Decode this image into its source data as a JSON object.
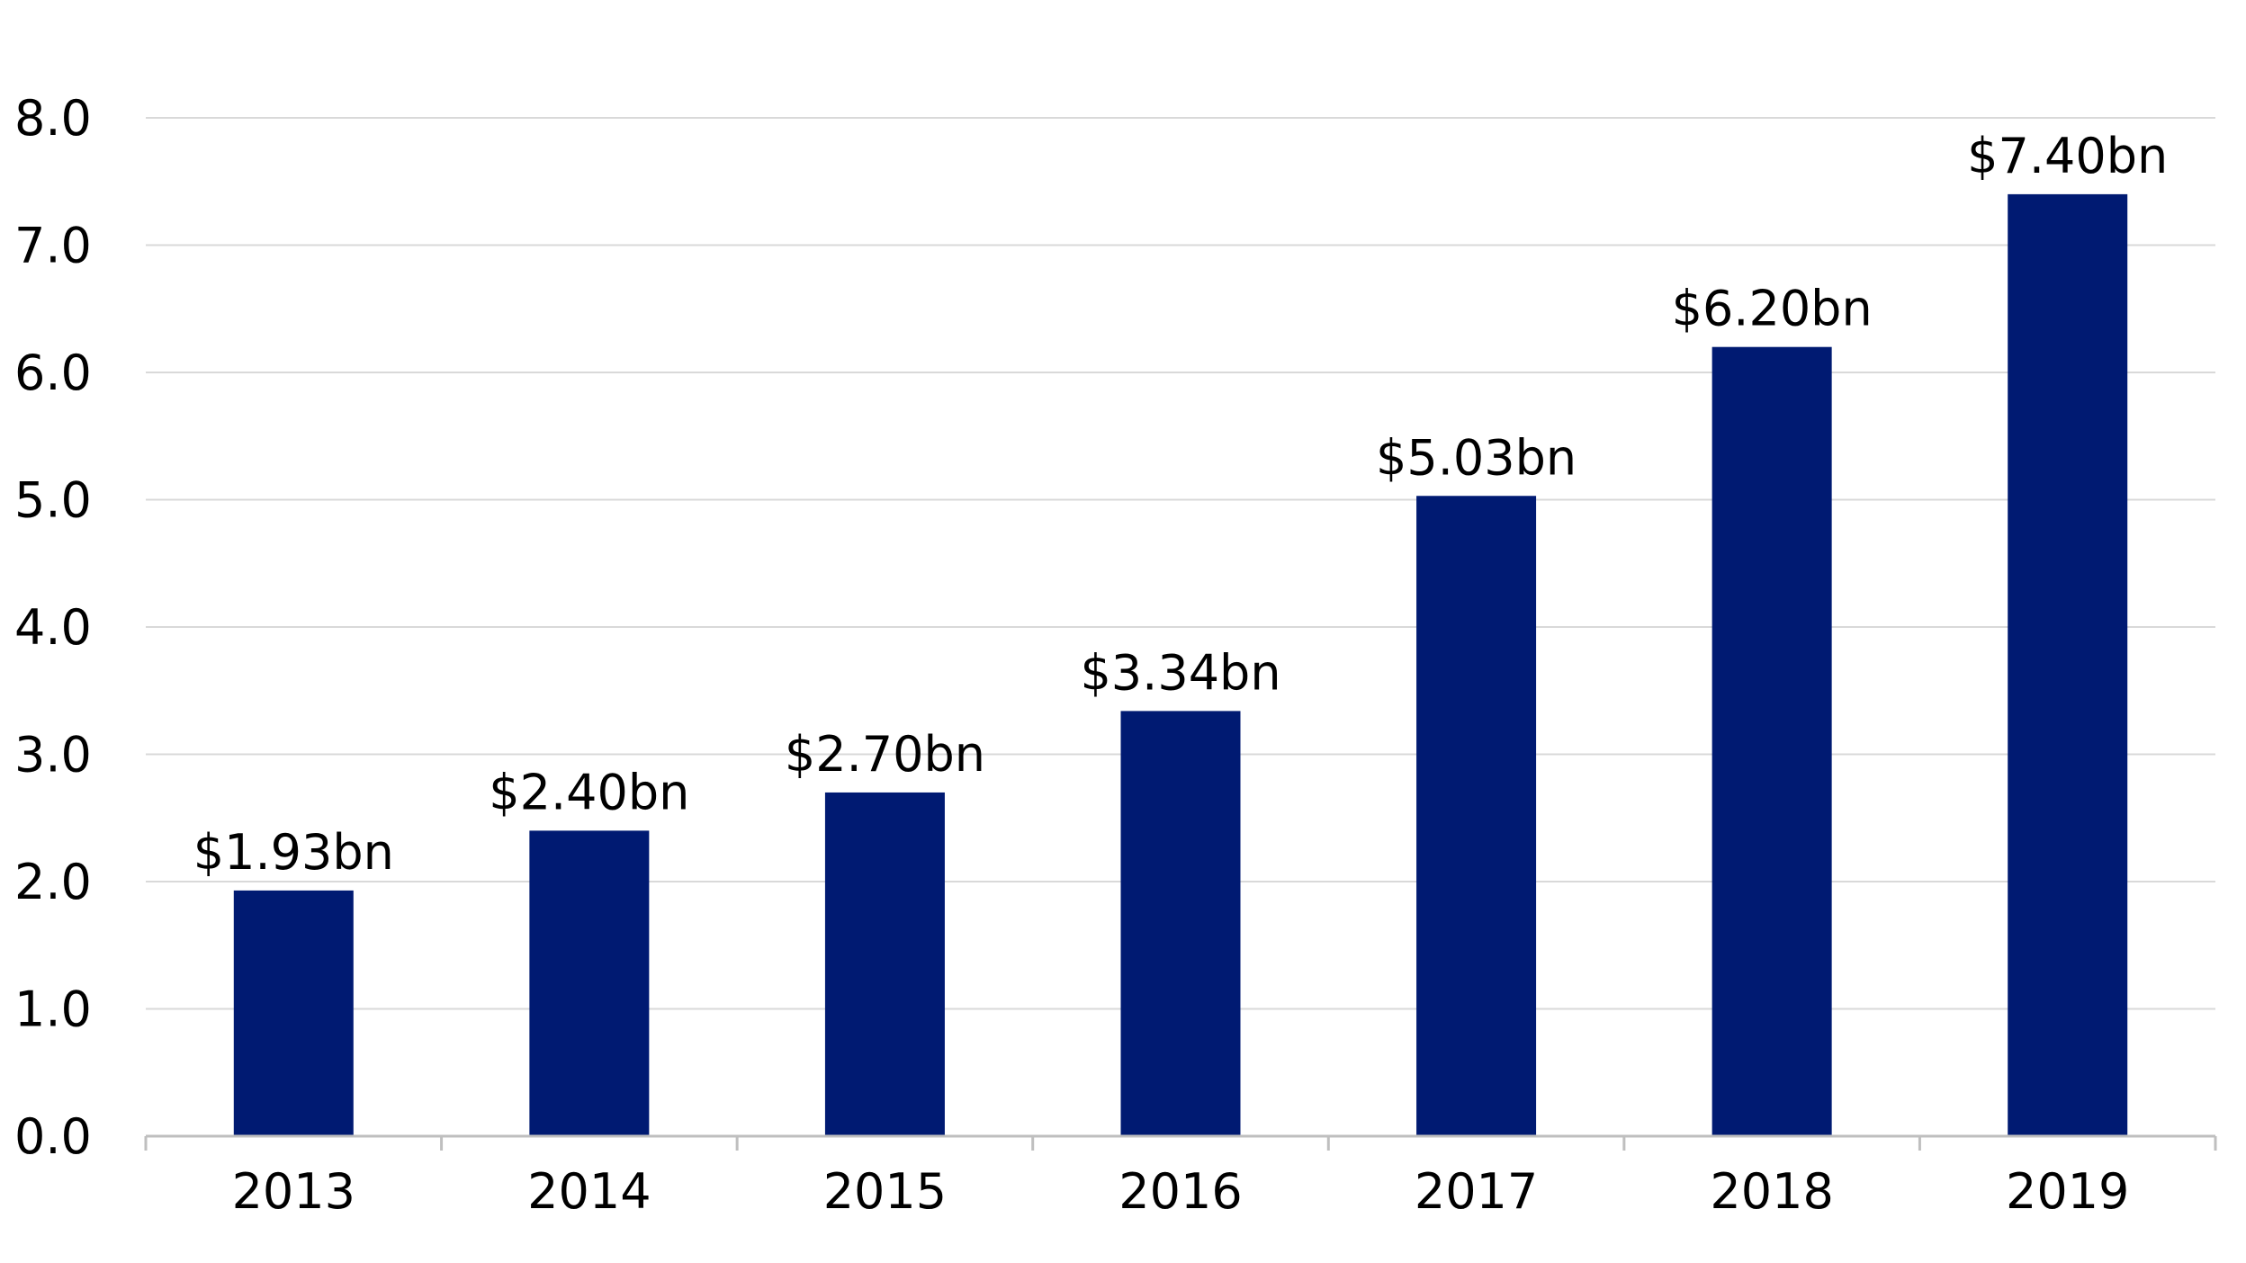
{
  "chart_data": {
    "type": "bar",
    "title": "",
    "xlabel": "",
    "ylabel": "",
    "categories": [
      "2013",
      "2014",
      "2015",
      "2016",
      "2017",
      "2018",
      "2019"
    ],
    "values": [
      1.93,
      2.4,
      2.7,
      3.34,
      5.03,
      6.2,
      7.4
    ],
    "data_labels": [
      "$1.93bn",
      "$2.40bn",
      "$2.70bn",
      "$3.34bn",
      "$5.03bn",
      "$6.20bn",
      "$7.40bn"
    ],
    "ylim": [
      0,
      8
    ],
    "y_ticks": [
      "0.0",
      "1.0",
      "2.0",
      "3.0",
      "4.0",
      "5.0",
      "6.0",
      "7.0",
      "8.0"
    ],
    "grid": true,
    "legend": "none",
    "colors": {
      "bar": "#001a72",
      "grid": "#d9d9d9",
      "axis": "#bfbfbf",
      "text": "#000000"
    }
  }
}
